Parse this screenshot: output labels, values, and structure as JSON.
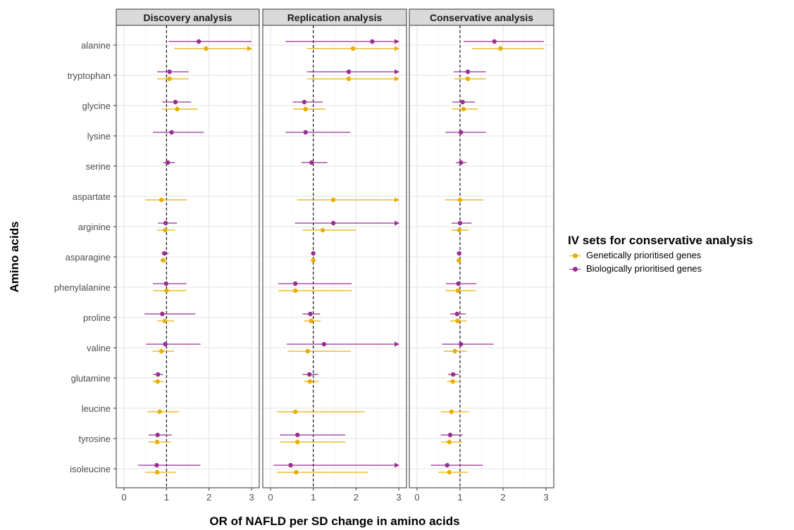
{
  "chart_data": {
    "type": "forest",
    "facets": [
      "Discovery analysis",
      "Replication analysis",
      "Conservative analysis"
    ],
    "xlabel": "OR of NAFLD per SD change in amino acids",
    "ylabel": "Amino acids",
    "xlim": [
      0,
      3
    ],
    "x_ticks": [
      "0",
      "1",
      "2",
      "3"
    ],
    "reference_line": 1,
    "categories": [
      "alanine",
      "tryptophan",
      "glycine",
      "lysine",
      "serine",
      "aspartate",
      "arginine",
      "asparagine",
      "phenylalanine",
      "proline",
      "valine",
      "glutamine",
      "leucine",
      "tyrosine",
      "isoleucine"
    ],
    "legend": {
      "title": "IV sets for conservative analysis",
      "position": "right",
      "entries": [
        "Genetically prioritised genes",
        "Biologically prioritised genes"
      ]
    },
    "series": [
      {
        "name": "Biologically prioritised genes",
        "color": "#9b2f8f",
        "points": [
          [
            {
              "or": 1.76,
              "lo": 1.05,
              "hi": 3.0,
              "arrow": false
            },
            {
              "or": 1.07,
              "lo": 0.78,
              "hi": 1.52
            },
            {
              "or": 1.21,
              "lo": 0.9,
              "hi": 1.58
            },
            {
              "or": 1.12,
              "lo": 0.68,
              "hi": 1.88
            },
            {
              "or": 1.03,
              "lo": 0.92,
              "hi": 1.2
            },
            null,
            {
              "or": 0.98,
              "lo": 0.8,
              "hi": 1.25
            },
            {
              "or": 0.95,
              "lo": 0.88,
              "hi": 1.05
            },
            {
              "or": 0.99,
              "lo": 0.68,
              "hi": 1.47
            },
            {
              "or": 0.9,
              "lo": 0.48,
              "hi": 1.68
            },
            {
              "or": 0.97,
              "lo": 0.52,
              "hi": 1.8
            },
            {
              "or": 0.8,
              "lo": 0.68,
              "hi": 0.92
            },
            null,
            {
              "or": 0.79,
              "lo": 0.58,
              "hi": 1.12
            },
            {
              "or": 0.77,
              "lo": 0.33,
              "hi": 1.8
            }
          ],
          [
            {
              "or": 2.38,
              "lo": 0.35,
              "hi": 3.0,
              "arrow": true
            },
            {
              "or": 1.83,
              "lo": 0.85,
              "hi": 3.0,
              "arrow": true
            },
            {
              "or": 0.79,
              "lo": 0.52,
              "hi": 1.22
            },
            {
              "or": 0.82,
              "lo": 0.35,
              "hi": 1.87
            },
            {
              "or": 0.96,
              "lo": 0.72,
              "hi": 1.33
            },
            null,
            {
              "or": 1.47,
              "lo": 0.57,
              "hi": 3.0,
              "arrow": true
            },
            {
              "or": 1.0,
              "lo": 0.96,
              "hi": 1.04
            },
            {
              "or": 0.58,
              "lo": 0.18,
              "hi": 1.9
            },
            {
              "or": 0.93,
              "lo": 0.75,
              "hi": 1.16
            },
            {
              "or": 1.25,
              "lo": 0.38,
              "hi": 3.0,
              "arrow": true
            },
            {
              "or": 0.91,
              "lo": 0.75,
              "hi": 1.12
            },
            null,
            {
              "or": 0.63,
              "lo": 0.22,
              "hi": 1.75
            },
            {
              "or": 0.47,
              "lo": 0.07,
              "hi": 3.0,
              "arrow": true
            }
          ],
          [
            {
              "or": 1.8,
              "lo": 1.08,
              "hi": 2.95
            },
            {
              "or": 1.18,
              "lo": 0.85,
              "hi": 1.6
            },
            {
              "or": 1.06,
              "lo": 0.82,
              "hi": 1.35
            },
            {
              "or": 1.02,
              "lo": 0.66,
              "hi": 1.6
            },
            {
              "or": 1.02,
              "lo": 0.9,
              "hi": 1.15
            },
            null,
            {
              "or": 1.0,
              "lo": 0.8,
              "hi": 1.27
            },
            {
              "or": 0.98,
              "lo": 0.92,
              "hi": 1.03
            },
            {
              "or": 0.96,
              "lo": 0.67,
              "hi": 1.38
            },
            {
              "or": 0.93,
              "lo": 0.77,
              "hi": 1.13
            },
            {
              "or": 1.02,
              "lo": 0.58,
              "hi": 1.78
            },
            {
              "or": 0.84,
              "lo": 0.72,
              "hi": 0.97
            },
            null,
            {
              "or": 0.77,
              "lo": 0.55,
              "hi": 1.06
            },
            {
              "or": 0.7,
              "lo": 0.32,
              "hi": 1.53
            }
          ]
        ]
      },
      {
        "name": "Genetically prioritised genes",
        "color": "#e7ae00",
        "points": [
          [
            {
              "or": 1.93,
              "lo": 1.18,
              "hi": 3.0,
              "arrow": true
            },
            {
              "or": 1.07,
              "lo": 0.78,
              "hi": 1.52
            },
            {
              "or": 1.25,
              "lo": 0.9,
              "hi": 1.73
            },
            null,
            null,
            {
              "or": 0.88,
              "lo": 0.5,
              "hi": 1.48
            },
            {
              "or": 0.97,
              "lo": 0.78,
              "hi": 1.2
            },
            {
              "or": 0.92,
              "lo": 0.85,
              "hi": 1.0
            },
            {
              "or": 1.0,
              "lo": 0.68,
              "hi": 1.47
            },
            {
              "or": 0.96,
              "lo": 0.78,
              "hi": 1.18
            },
            {
              "or": 0.88,
              "lo": 0.67,
              "hi": 1.18
            },
            {
              "or": 0.79,
              "lo": 0.67,
              "hi": 0.93
            },
            {
              "or": 0.84,
              "lo": 0.55,
              "hi": 1.3
            },
            {
              "or": 0.78,
              "lo": 0.57,
              "hi": 1.1
            },
            {
              "or": 0.78,
              "lo": 0.5,
              "hi": 1.22
            }
          ],
          [
            {
              "or": 1.93,
              "lo": 0.85,
              "hi": 3.0,
              "arrow": true
            },
            {
              "or": 1.83,
              "lo": 0.85,
              "hi": 3.0,
              "arrow": true
            },
            {
              "or": 0.82,
              "lo": 0.53,
              "hi": 1.28
            },
            null,
            null,
            {
              "or": 1.47,
              "lo": 0.62,
              "hi": 3.0,
              "arrow": true
            },
            {
              "or": 1.22,
              "lo": 0.75,
              "hi": 2.0
            },
            {
              "or": 1.0,
              "lo": 0.97,
              "hi": 1.03
            },
            {
              "or": 0.58,
              "lo": 0.18,
              "hi": 1.9
            },
            {
              "or": 0.95,
              "lo": 0.78,
              "hi": 1.17
            },
            {
              "or": 0.87,
              "lo": 0.4,
              "hi": 1.88
            },
            {
              "or": 0.92,
              "lo": 0.78,
              "hi": 1.12
            },
            {
              "or": 0.58,
              "lo": 0.15,
              "hi": 2.2
            },
            {
              "or": 0.63,
              "lo": 0.22,
              "hi": 1.75
            },
            {
              "or": 0.6,
              "lo": 0.15,
              "hi": 2.28
            }
          ],
          [
            {
              "or": 1.94,
              "lo": 1.28,
              "hi": 2.96
            },
            {
              "or": 1.18,
              "lo": 0.87,
              "hi": 1.6
            },
            {
              "or": 1.08,
              "lo": 0.82,
              "hi": 1.42
            },
            null,
            null,
            {
              "or": 1.0,
              "lo": 0.65,
              "hi": 1.55
            },
            {
              "or": 0.98,
              "lo": 0.8,
              "hi": 1.2
            },
            {
              "or": 0.97,
              "lo": 0.92,
              "hi": 1.03
            },
            {
              "or": 0.95,
              "lo": 0.66,
              "hi": 1.37
            },
            {
              "or": 0.94,
              "lo": 0.77,
              "hi": 1.15
            },
            {
              "or": 0.88,
              "lo": 0.62,
              "hi": 1.16
            },
            {
              "or": 0.83,
              "lo": 0.7,
              "hi": 0.97
            },
            {
              "or": 0.8,
              "lo": 0.55,
              "hi": 1.2
            },
            {
              "or": 0.75,
              "lo": 0.56,
              "hi": 1.05
            },
            {
              "or": 0.75,
              "lo": 0.5,
              "hi": 1.18
            }
          ]
        ]
      }
    ]
  }
}
